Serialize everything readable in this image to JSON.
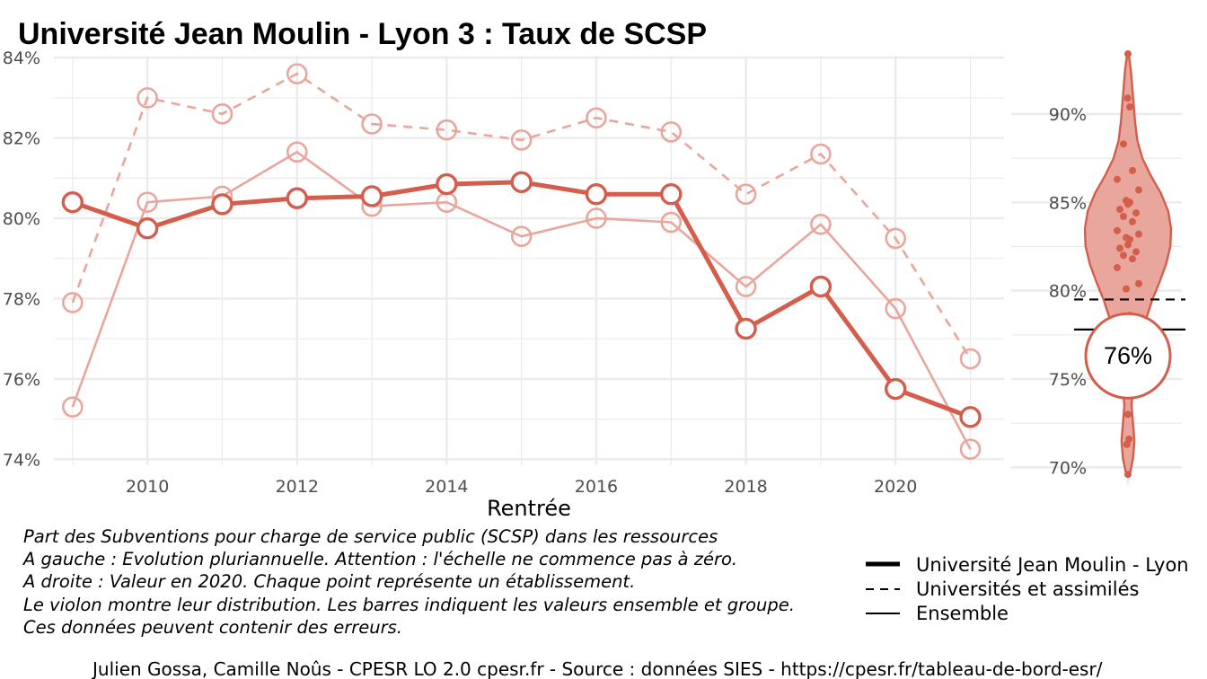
{
  "title": "Université Jean Moulin - Lyon 3  :  Taux de SCSP",
  "caption_lines": [
    "Part des Subventions pour charge de service public (SCSP) dans les ressources",
    "A gauche : Evolution pluriannuelle. Attention : l'échelle ne commence pas à zéro.",
    "A droite : Valeur en 2020. Chaque point représente un établissement.",
    "Le violon montre leur distribution. Les barres indiquent les valeurs ensemble et groupe.",
    "Ces données peuvent contenir des erreurs."
  ],
  "legend": [
    {
      "label": "Université Jean Moulin - Lyon",
      "style": "thick-solid"
    },
    {
      "label": "Universités et assimilés",
      "style": "dashed"
    },
    {
      "label": "Ensemble",
      "style": "solid"
    }
  ],
  "footer": "Julien Gossa, Camille Noûs - CPESR LO 2.0 cpesr.fr - Source : données SIES - https://cpesr.fr/tableau-de-bord-esr/",
  "colors": {
    "accent": "#d45d4c",
    "light": "#e9a69c",
    "grid": "#ebebeb",
    "violin_fill": "#e9a69c"
  },
  "chart_data": [
    {
      "type": "line",
      "xlabel": "Rentrée",
      "ylabel": "",
      "x_ticks": [
        2010,
        2012,
        2014,
        2016,
        2018,
        2020
      ],
      "y_ticks": [
        "74%",
        "76%",
        "78%",
        "80%",
        "82%",
        "84%"
      ],
      "y_tick_values": [
        74,
        76,
        78,
        80,
        82,
        84
      ],
      "xlim": [
        2008.75,
        2021.45
      ],
      "ylim": [
        73.85,
        84.05
      ],
      "grid": true,
      "x": [
        2009,
        2010,
        2011,
        2012,
        2013,
        2014,
        2015,
        2016,
        2017,
        2018,
        2019,
        2020,
        2021
      ],
      "series": [
        {
          "name": "Université Jean Moulin - Lyon",
          "style": "thick-solid",
          "values": [
            80.4,
            79.75,
            80.35,
            80.5,
            80.55,
            80.85,
            80.9,
            80.6,
            80.6,
            77.25,
            78.3,
            75.75,
            75.05
          ]
        },
        {
          "name": "Universités et assimilés",
          "style": "dashed",
          "values": [
            77.9,
            83.0,
            82.6,
            83.6,
            82.35,
            82.2,
            81.95,
            82.5,
            82.15,
            80.6,
            81.6,
            79.5,
            76.5
          ]
        },
        {
          "name": "Ensemble",
          "style": "solid",
          "values": [
            75.3,
            80.4,
            80.55,
            81.65,
            80.3,
            80.4,
            79.55,
            80.0,
            79.9,
            78.3,
            79.85,
            77.75,
            74.25
          ]
        }
      ]
    },
    {
      "type": "scatter",
      "subtype": "violin",
      "y_ticks": [
        "70%",
        "75%",
        "80%",
        "85%",
        "90%"
      ],
      "y_tick_values": [
        70,
        75,
        80,
        85,
        90
      ],
      "ylim": [
        69.0,
        93.3
      ],
      "grid": true,
      "value_label": "76%",
      "value": 75.8,
      "ref_universites": 79.5,
      "ref_ensemble": 77.8,
      "points": [
        93.4,
        90.9,
        90.4,
        88.3,
        86.8,
        86.3,
        85.7,
        85.1,
        85.0,
        84.9,
        84.6,
        84.4,
        84.2,
        83.9,
        83.4,
        83.2,
        83.0,
        82.9,
        82.6,
        82.4,
        82.2,
        82.0,
        81.8,
        81.3,
        80.4,
        80.1,
        78.6,
        74.6,
        73.0,
        71.6,
        71.3,
        69.6
      ],
      "violin_profile": [
        [
          69.5,
          0.1
        ],
        [
          70.5,
          0.35
        ],
        [
          71.5,
          0.45
        ],
        [
          72.5,
          0.35
        ],
        [
          73.5,
          0.25
        ],
        [
          74.5,
          0.35
        ],
        [
          75.5,
          0.55
        ],
        [
          76.5,
          0.75
        ],
        [
          77.5,
          0.95
        ],
        [
          78.5,
          1.3
        ],
        [
          79.5,
          1.7
        ],
        [
          80.5,
          2.2
        ],
        [
          81.5,
          2.65
        ],
        [
          82.5,
          2.95
        ],
        [
          83.5,
          3.0
        ],
        [
          84.5,
          2.8
        ],
        [
          85.5,
          2.3
        ],
        [
          86.5,
          1.6
        ],
        [
          87.5,
          1.0
        ],
        [
          88.5,
          0.65
        ],
        [
          89.5,
          0.5
        ],
        [
          90.5,
          0.4
        ],
        [
          91.5,
          0.3
        ],
        [
          92.5,
          0.2
        ],
        [
          93.4,
          0.05
        ]
      ]
    }
  ]
}
